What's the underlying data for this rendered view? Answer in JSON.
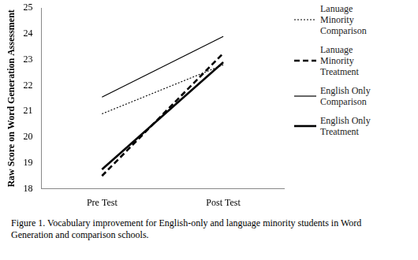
{
  "chart_data": {
    "type": "line",
    "y_label": "Raw Score on Word Generation Assessment",
    "caption": "Figure 1. Vocabulary improvement for English-only and language minority students in Word Generation and comparison schools.",
    "categories": [
      "Pre Test",
      "Post Test"
    ],
    "series": [
      {
        "name": "Lanuage Minority Comparison",
        "color": "#000000",
        "line_style": "dotted",
        "values": [
          20.9,
          22.8
        ]
      },
      {
        "name": "Lanuage Minority Treatment",
        "color": "#000000",
        "line_style": "thick-dashed",
        "values": [
          18.5,
          23.25
        ]
      },
      {
        "name": "English Only Comparison",
        "color": "#000000",
        "line_style": "solid",
        "values": [
          21.55,
          23.9
        ]
      },
      {
        "name": "English Only Treatment",
        "color": "#000000",
        "line_style": "thick-solid",
        "values": [
          18.75,
          22.9
        ]
      }
    ],
    "ylim": [
      18,
      25
    ],
    "yticks": [
      18,
      19,
      20,
      21,
      22,
      23,
      24,
      25
    ],
    "grid": false,
    "legend": "right"
  }
}
